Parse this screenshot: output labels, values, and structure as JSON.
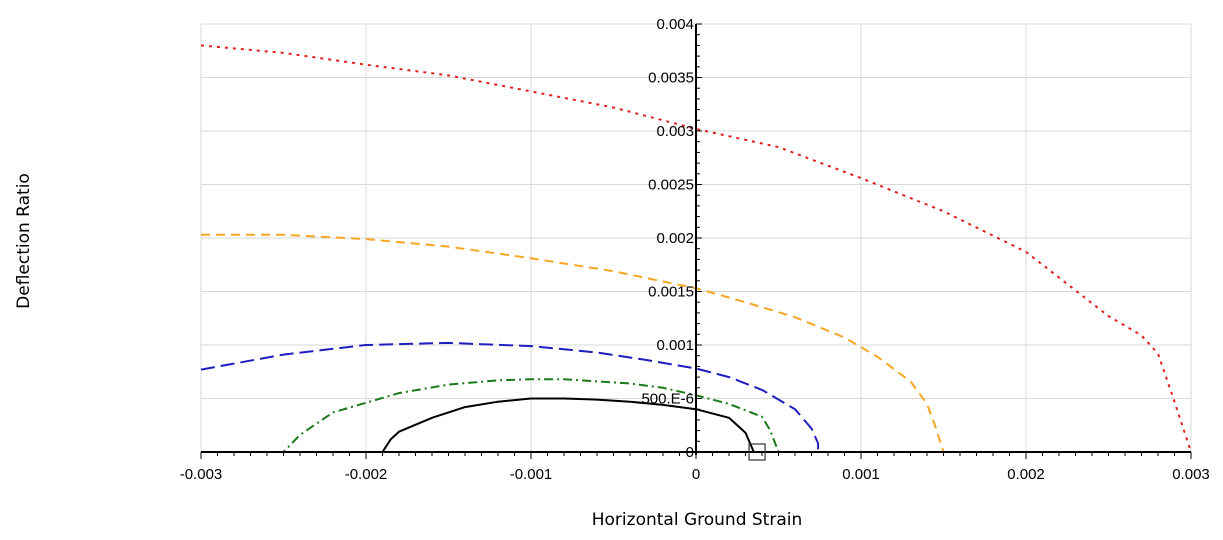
{
  "chart_data": {
    "type": "line",
    "xlabel": "Horizontal Ground Strain",
    "ylabel": "Deflection Ratio",
    "xlim": [
      -0.003,
      0.003
    ],
    "ylim": [
      0,
      0.004
    ],
    "grid": true,
    "x_ticks": [
      {
        "value": -0.003,
        "label": "-0.003"
      },
      {
        "value": -0.002,
        "label": "-0.002"
      },
      {
        "value": -0.001,
        "label": "-0.001"
      },
      {
        "value": 0,
        "label": "0"
      },
      {
        "value": 0.001,
        "label": "0.001"
      },
      {
        "value": 0.002,
        "label": "0.002"
      },
      {
        "value": 0.003,
        "label": "0.003"
      }
    ],
    "y_ticks": [
      {
        "value": 0,
        "label": "0"
      },
      {
        "value": 0.0005,
        "label": "500.E-6"
      },
      {
        "value": 0.001,
        "label": "0.001"
      },
      {
        "value": 0.0015,
        "label": "0.0015"
      },
      {
        "value": 0.002,
        "label": "0.002"
      },
      {
        "value": 0.0025,
        "label": "0.0025"
      },
      {
        "value": 0.003,
        "label": "0.003"
      },
      {
        "value": 0.0035,
        "label": "0.0035"
      },
      {
        "value": 0.004,
        "label": "0.004"
      }
    ],
    "series": [
      {
        "color": "#000000",
        "dash": "solid",
        "x": [
          -0.003,
          -0.0019,
          -0.00185,
          -0.0018,
          -0.0016,
          -0.0014,
          -0.0012,
          -0.001,
          -0.0008,
          -0.0006,
          -0.0004,
          -0.0002,
          0,
          0.0002,
          0.0003,
          0.00035
        ],
        "y": [
          0,
          0,
          0.00012,
          0.00019,
          0.00032,
          0.00042,
          0.00047,
          0.0005,
          0.0005,
          0.00049,
          0.00047,
          0.00044,
          0.0004,
          0.00032,
          0.00018,
          0
        ]
      },
      {
        "color": "#1a7a1a",
        "dash": "dashdot",
        "x": [
          -0.003,
          -0.0025,
          -0.0024,
          -0.0022,
          -0.0018,
          -0.0015,
          -0.0012,
          -0.001,
          -0.0008,
          -0.0006,
          -0.0004,
          -0.0002,
          0,
          0.0002,
          0.0004,
          0.00045,
          0.0005
        ],
        "y": [
          0,
          0,
          0.00016,
          0.00037,
          0.00055,
          0.00063,
          0.00067,
          0.00068,
          0.00068,
          0.00066,
          0.00064,
          0.0006,
          0.00053,
          0.00045,
          0.00033,
          0.0002,
          0
        ]
      },
      {
        "color": "#1f1fc0",
        "dash": "longdash",
        "x": [
          -0.003,
          -0.0025,
          -0.002,
          -0.0015,
          -0.001,
          -0.0006,
          -0.0003,
          0,
          0.0002,
          0.0004,
          0.0006,
          0.0007,
          0.00074,
          0.00074
        ],
        "y": [
          0.00077,
          0.00091,
          0.001,
          0.00102,
          0.00099,
          0.00093,
          0.00086,
          0.00078,
          0.0007,
          0.00058,
          0.0004,
          0.00022,
          8e-05,
          0
        ]
      },
      {
        "color": "#f5a623",
        "dash": "dash",
        "x": [
          -0.003,
          -0.0025,
          -0.002,
          -0.0015,
          -0.001,
          -0.0005,
          0,
          0.0003,
          0.0006,
          0.0009,
          0.0011,
          0.0013,
          0.0014,
          0.00145,
          0.0015
        ],
        "y": [
          0.00203,
          0.00203,
          0.00199,
          0.00192,
          0.00181,
          0.00169,
          0.00153,
          0.0014,
          0.00126,
          0.00107,
          0.00089,
          0.00066,
          0.00045,
          0.00024,
          0
        ]
      },
      {
        "color": "#e0201a",
        "dash": "dot",
        "x": [
          -0.003,
          -0.0025,
          -0.002,
          -0.0015,
          -0.001,
          -0.0005,
          0,
          0.0005,
          0.001,
          0.0015,
          0.002,
          0.0025,
          0.0027,
          0.0028,
          0.0029,
          0.003
        ],
        "y": [
          0.0038,
          0.00373,
          0.00362,
          0.00352,
          0.00337,
          0.00322,
          0.00302,
          0.00285,
          0.00256,
          0.00225,
          0.00187,
          0.00127,
          0.00109,
          0.00092,
          0.00047,
          0
        ]
      }
    ],
    "marker": {
      "shape": "square",
      "x": 0.00037,
      "y": 0
    }
  }
}
